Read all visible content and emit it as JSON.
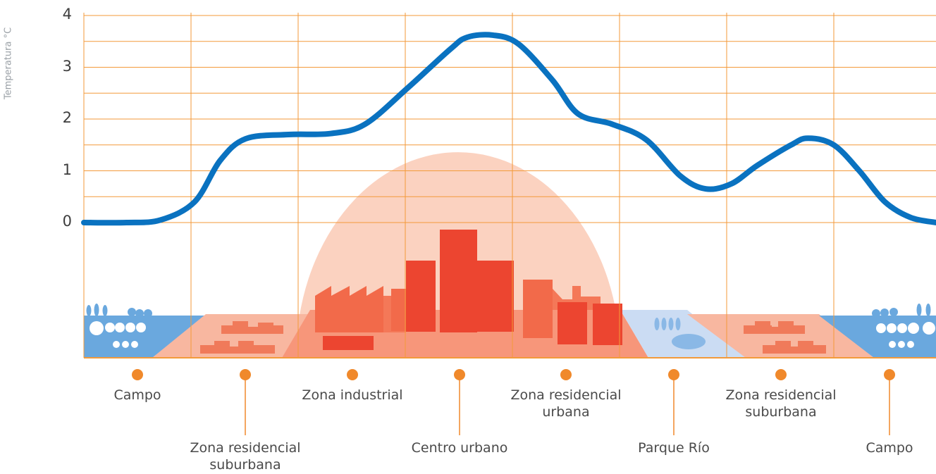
{
  "chart_data": {
    "type": "line",
    "ylabel": "Temperatura °C",
    "xlabel": "",
    "ylim": [
      0,
      4
    ],
    "yticks": [
      "0",
      "1",
      "2",
      "3",
      "4"
    ],
    "grid": true,
    "series": [
      {
        "values": [
          [
            0,
            0
          ],
          [
            0.05,
            0
          ],
          [
            0.09,
            0.05
          ],
          [
            0.13,
            0.4
          ],
          [
            0.16,
            1.2
          ],
          [
            0.19,
            1.62
          ],
          [
            0.24,
            1.7
          ],
          [
            0.29,
            1.72
          ],
          [
            0.33,
            1.9
          ],
          [
            0.38,
            2.6
          ],
          [
            0.43,
            3.35
          ],
          [
            0.45,
            3.58
          ],
          [
            0.48,
            3.62
          ],
          [
            0.51,
            3.45
          ],
          [
            0.55,
            2.75
          ],
          [
            0.58,
            2.1
          ],
          [
            0.62,
            1.9
          ],
          [
            0.66,
            1.6
          ],
          [
            0.7,
            0.9
          ],
          [
            0.73,
            0.65
          ],
          [
            0.76,
            0.75
          ],
          [
            0.79,
            1.1
          ],
          [
            0.83,
            1.5
          ],
          [
            0.85,
            1.63
          ],
          [
            0.88,
            1.5
          ],
          [
            0.91,
            1.0
          ],
          [
            0.94,
            0.4
          ],
          [
            0.97,
            0.1
          ],
          [
            1.0,
            0
          ]
        ],
        "color": "#0a72c0"
      }
    ],
    "zones": [
      "Campo",
      "Zona residencial\nsuburbana",
      "Zona industrial",
      "Centro urbano",
      "Zona residencial\nurbana",
      "Parque Río",
      "Zona residencial\nsuburbana",
      "Campo"
    ]
  },
  "colors": {
    "grid": "#f39a3a",
    "curve": "#0a72c0",
    "marker": "#f0892b",
    "heat_dome": "#fbd2c0",
    "ground_urban": "#f7967a",
    "ground_suburban": "#f8b7a0",
    "buildings_dark": "#ec4530",
    "buildings_mid": "#f26a4a",
    "countryside": "#6aa8de",
    "park": "#cbdcf3"
  }
}
